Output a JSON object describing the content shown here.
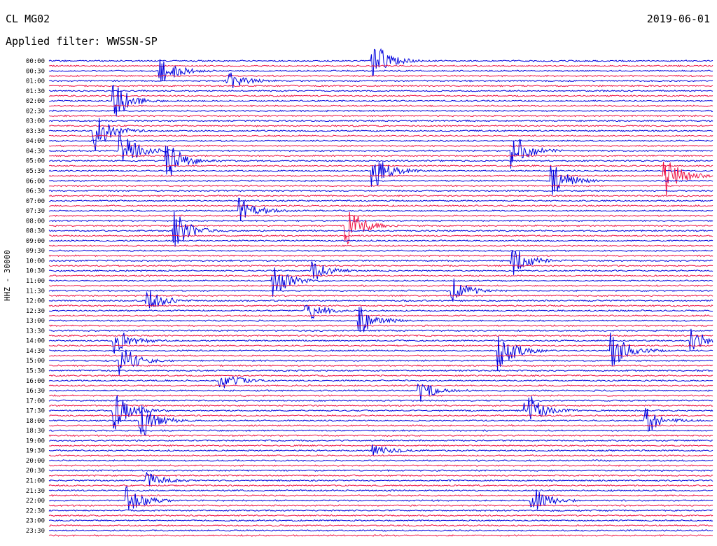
{
  "header": {
    "station": "CL MG02",
    "date": "2019-06-01",
    "filter_text": "Applied filter: WWSSN-SP"
  },
  "chart_data": {
    "type": "line",
    "title": "CL MG02",
    "ylabel": "HHZ - 30000",
    "filter": "WWSSN-SP",
    "date": "2019-06-01",
    "row_interval_minutes": 15,
    "row_labels": [
      "00:00",
      "00:30",
      "01:00",
      "01:30",
      "02:00",
      "02:30",
      "03:00",
      "03:30",
      "04:00",
      "04:30",
      "05:00",
      "05:30",
      "06:00",
      "06:30",
      "07:00",
      "07:30",
      "08:00",
      "08:30",
      "09:00",
      "09:30",
      "10:00",
      "10:30",
      "11:00",
      "11:30",
      "12:00",
      "12:30",
      "13:00",
      "13:30",
      "14:00",
      "14:30",
      "15:00",
      "15:30",
      "16:00",
      "16:30",
      "17:00",
      "17:30",
      "18:00",
      "18:30",
      "19:00",
      "19:30",
      "20:00",
      "20:30",
      "21:00",
      "21:30",
      "22:00",
      "22:30",
      "23:00",
      "23:30"
    ],
    "trace_colors": [
      "#0000dd",
      "#ee1144"
    ],
    "n_rows": 96,
    "events": [
      {
        "row": 0,
        "x": 0.49,
        "amp": 1.0
      },
      {
        "row": 2,
        "x": 0.17,
        "amp": 0.8
      },
      {
        "row": 4,
        "x": 0.27,
        "amp": 0.5
      },
      {
        "row": 8,
        "x": 0.1,
        "amp": 0.9
      },
      {
        "row": 14,
        "x": 0.07,
        "amp": 1.0
      },
      {
        "row": 18,
        "x": 0.11,
        "amp": 1.0
      },
      {
        "row": 18,
        "x": 0.7,
        "amp": 0.9
      },
      {
        "row": 20,
        "x": 0.18,
        "amp": 1.0
      },
      {
        "row": 22,
        "x": 0.49,
        "amp": 1.0
      },
      {
        "row": 23,
        "x": 0.93,
        "amp": 1.0
      },
      {
        "row": 24,
        "x": 0.76,
        "amp": 0.9
      },
      {
        "row": 30,
        "x": 0.29,
        "amp": 0.7
      },
      {
        "row": 33,
        "x": 0.45,
        "amp": 1.0
      },
      {
        "row": 34,
        "x": 0.19,
        "amp": 1.0
      },
      {
        "row": 40,
        "x": 0.7,
        "amp": 0.7
      },
      {
        "row": 42,
        "x": 0.4,
        "amp": 0.5
      },
      {
        "row": 44,
        "x": 0.34,
        "amp": 0.8
      },
      {
        "row": 46,
        "x": 0.61,
        "amp": 0.6
      },
      {
        "row": 48,
        "x": 0.15,
        "amp": 0.6
      },
      {
        "row": 50,
        "x": 0.39,
        "amp": 0.6
      },
      {
        "row": 52,
        "x": 0.47,
        "amp": 0.7
      },
      {
        "row": 56,
        "x": 0.1,
        "amp": 0.7
      },
      {
        "row": 56,
        "x": 0.97,
        "amp": 0.6
      },
      {
        "row": 58,
        "x": 0.68,
        "amp": 1.0
      },
      {
        "row": 58,
        "x": 0.85,
        "amp": 1.0
      },
      {
        "row": 60,
        "x": 0.11,
        "amp": 0.8
      },
      {
        "row": 64,
        "x": 0.26,
        "amp": 0.5
      },
      {
        "row": 66,
        "x": 0.56,
        "amp": 0.5
      },
      {
        "row": 70,
        "x": 0.1,
        "amp": 1.0
      },
      {
        "row": 70,
        "x": 0.72,
        "amp": 1.0
      },
      {
        "row": 72,
        "x": 0.14,
        "amp": 0.9
      },
      {
        "row": 72,
        "x": 0.9,
        "amp": 0.7
      },
      {
        "row": 78,
        "x": 0.49,
        "amp": 0.4
      },
      {
        "row": 84,
        "x": 0.15,
        "amp": 0.4
      },
      {
        "row": 88,
        "x": 0.12,
        "amp": 0.7
      },
      {
        "row": 88,
        "x": 0.73,
        "amp": 0.7
      }
    ]
  }
}
